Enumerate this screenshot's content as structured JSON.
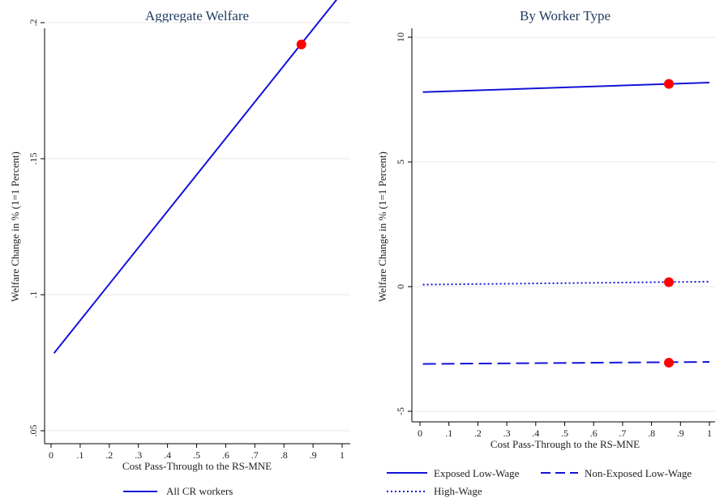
{
  "chart_data": [
    {
      "type": "line",
      "title": "Aggregate Welfare",
      "xlabel": "Cost Pass-Through to the RS-MNE",
      "ylabel": "Welfare Change in % (1=1 Percent)",
      "xlim": [
        0,
        1
      ],
      "ylim": [
        0.05,
        0.2
      ],
      "xticks": [
        0,
        0.1,
        0.2,
        0.3,
        0.4,
        0.5,
        0.6,
        0.7,
        0.8,
        0.9,
        1
      ],
      "xtick_labels": [
        "0",
        ".1",
        ".2",
        ".3",
        ".4",
        ".5",
        ".6",
        ".7",
        ".8",
        ".9",
        "1"
      ],
      "yticks": [
        0.05,
        0.1,
        0.15,
        0.2
      ],
      "ytick_labels": [
        ".05",
        ".1",
        ".15",
        ".2"
      ],
      "grid": "horizontal",
      "legend_position": "bottom",
      "series": [
        {
          "name": "All CR workers",
          "style": "solid",
          "color": "#1414d8",
          "x": [
            0.01,
            1.0
          ],
          "y": [
            0.0785,
            0.211
          ]
        }
      ],
      "markers": [
        {
          "x": 0.86,
          "y": 0.192,
          "color": "#ff0000"
        }
      ]
    },
    {
      "type": "line",
      "title": "By Worker Type",
      "xlabel": "Cost Pass-Through to the RS-MNE",
      "ylabel": "Welfare Change in % (1=1 Percent)",
      "xlim": [
        0,
        1
      ],
      "ylim": [
        -5,
        10
      ],
      "xticks": [
        0,
        0.1,
        0.2,
        0.3,
        0.4,
        0.5,
        0.6,
        0.7,
        0.8,
        0.9,
        1
      ],
      "xtick_labels": [
        "0",
        ".1",
        ".2",
        ".3",
        ".4",
        ".5",
        ".6",
        ".7",
        ".8",
        ".9",
        "1"
      ],
      "yticks": [
        -5,
        0,
        5,
        10
      ],
      "ytick_labels": [
        "-5",
        "0",
        "5",
        "10"
      ],
      "grid": "horizontal",
      "legend_position": "bottom",
      "series": [
        {
          "name": "Exposed Low-Wage",
          "style": "solid",
          "color": "#1414d8",
          "x": [
            0.01,
            1.0
          ],
          "y": [
            7.8,
            8.18
          ]
        },
        {
          "name": "Non-Exposed Low-Wage",
          "style": "longdash",
          "color": "#1414d8",
          "x": [
            0.01,
            1.0
          ],
          "y": [
            -3.1,
            -3.02
          ]
        },
        {
          "name": "High-Wage",
          "style": "dotted",
          "color": "#1414d8",
          "x": [
            0.01,
            1.0
          ],
          "y": [
            0.08,
            0.2
          ]
        }
      ],
      "markers": [
        {
          "x": 0.86,
          "y": 8.13,
          "color": "#ff0000"
        },
        {
          "x": 0.86,
          "y": 0.18,
          "color": "#ff0000"
        },
        {
          "x": 0.86,
          "y": -3.05,
          "color": "#ff0000"
        }
      ]
    }
  ]
}
